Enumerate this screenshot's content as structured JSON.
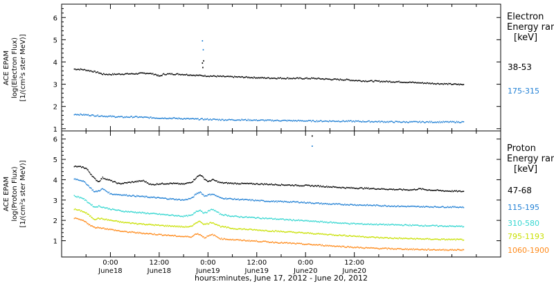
{
  "chart_data": [
    {
      "type": "scatter",
      "panel": "electron",
      "ylabel_lines": [
        "ACE EPAM",
        "log(Electron Flux)",
        "[1/(cm²s ster MeV)]"
      ],
      "ylim": [
        0.9,
        6.6
      ],
      "yticks": [
        "1",
        "2",
        "3",
        "4",
        "5",
        "6"
      ],
      "legend_title": [
        "Electron",
        "Energy range",
        "[keV]"
      ],
      "series": [
        {
          "name": "38-53",
          "color": "#000000",
          "points": [
            [
              -9,
              3.68
            ],
            [
              -7,
              3.66
            ],
            [
              -5,
              3.6
            ],
            [
              -3,
              3.52
            ],
            [
              -2,
              3.45
            ],
            [
              0,
              3.44
            ],
            [
              3,
              3.46
            ],
            [
              6,
              3.47
            ],
            [
              9,
              3.5
            ],
            [
              11,
              3.44
            ],
            [
              12,
              3.35
            ],
            [
              13,
              3.45
            ],
            [
              15,
              3.46
            ],
            [
              18,
              3.44
            ],
            [
              21,
              3.4
            ],
            [
              24,
              3.37
            ],
            [
              28,
              3.34
            ],
            [
              32,
              3.32
            ],
            [
              35,
              3.3
            ],
            [
              38,
              3.28
            ],
            [
              42,
              3.27
            ],
            [
              46,
              3.26
            ],
            [
              50,
              3.26
            ],
            [
              54,
              3.22
            ],
            [
              58,
              3.2
            ],
            [
              60,
              3.17
            ],
            [
              62,
              3.15
            ],
            [
              64,
              3.14
            ],
            [
              68,
              3.12
            ],
            [
              72,
              3.1
            ],
            [
              76,
              3.06
            ],
            [
              80,
              3.03
            ],
            [
              84,
              3.0
            ],
            [
              87,
              2.98
            ]
          ]
        },
        {
          "name": "175-315",
          "color": "#1f7fd4",
          "points": [
            [
              -9,
              1.65
            ],
            [
              -6,
              1.62
            ],
            [
              -3,
              1.58
            ],
            [
              0,
              1.55
            ],
            [
              3,
              1.52
            ],
            [
              6,
              1.53
            ],
            [
              9,
              1.5
            ],
            [
              12,
              1.48
            ],
            [
              15,
              1.47
            ],
            [
              18,
              1.45
            ],
            [
              21,
              1.43
            ],
            [
              24,
              1.42
            ],
            [
              28,
              1.4
            ],
            [
              32,
              1.4
            ],
            [
              36,
              1.38
            ],
            [
              40,
              1.37
            ],
            [
              44,
              1.36
            ],
            [
              48,
              1.35
            ],
            [
              52,
              1.34
            ],
            [
              56,
              1.34
            ],
            [
              60,
              1.33
            ],
            [
              64,
              1.32
            ],
            [
              68,
              1.31
            ],
            [
              72,
              1.3
            ],
            [
              76,
              1.3
            ],
            [
              80,
              1.3
            ],
            [
              84,
              1.3
            ],
            [
              87,
              1.3
            ]
          ]
        }
      ],
      "spikes": [
        {
          "color": "#000000",
          "points": [
            [
              22.5,
              3.95
            ],
            [
              22.6,
              3.75
            ],
            [
              22.8,
              4.05
            ]
          ]
        },
        {
          "color": "#1f7fd4",
          "points": [
            [
              22.5,
              4.95
            ],
            [
              22.7,
              4.55
            ]
          ]
        }
      ]
    },
    {
      "type": "scatter",
      "panel": "proton",
      "ylabel_lines": [
        "ACE EPAM",
        "log(Proton Flux)",
        "[1/(cm²s ster MeV)]"
      ],
      "ylim": [
        0.2,
        6.4
      ],
      "yticks": [
        "1",
        "2",
        "3",
        "4",
        "5",
        "6"
      ],
      "legend_title": [
        "Proton",
        "Energy range",
        "[keV]"
      ],
      "xlabel": "hours:minutes, June 17, 2012 - June 20, 2012",
      "xtick_hours": [
        "0:00",
        "12:00",
        "0:00",
        "12:00",
        "0:00",
        "12:00"
      ],
      "xtick_dates": [
        "June18",
        "June18",
        "June19",
        "June19",
        "June20",
        "June20"
      ],
      "xlim": [
        -12,
        96
      ],
      "series": [
        {
          "name": "47-68",
          "color": "#000000",
          "points": [
            [
              -9,
              4.65
            ],
            [
              -7,
              4.62
            ],
            [
              -6,
              4.55
            ],
            [
              -5,
              4.3
            ],
            [
              -4,
              4.05
            ],
            [
              -3,
              3.9
            ],
            [
              -2,
              4.1
            ],
            [
              0,
              3.95
            ],
            [
              2,
              3.8
            ],
            [
              4,
              3.85
            ],
            [
              6,
              3.9
            ],
            [
              8,
              3.95
            ],
            [
              10,
              3.75
            ],
            [
              12,
              3.8
            ],
            [
              15,
              3.82
            ],
            [
              18,
              3.78
            ],
            [
              20,
              3.9
            ],
            [
              21,
              4.1
            ],
            [
              22,
              4.25
            ],
            [
              23,
              4.05
            ],
            [
              24,
              3.9
            ],
            [
              25,
              4.0
            ],
            [
              27,
              3.85
            ],
            [
              30,
              3.82
            ],
            [
              34,
              3.8
            ],
            [
              38,
              3.78
            ],
            [
              42,
              3.75
            ],
            [
              46,
              3.72
            ],
            [
              50,
              3.7
            ],
            [
              54,
              3.65
            ],
            [
              58,
              3.6
            ],
            [
              62,
              3.58
            ],
            [
              66,
              3.55
            ],
            [
              70,
              3.52
            ],
            [
              74,
              3.5
            ],
            [
              76,
              3.55
            ],
            [
              78,
              3.5
            ],
            [
              82,
              3.45
            ],
            [
              87,
              3.42
            ]
          ]
        },
        {
          "name": "115-195",
          "color": "#1f7fd4",
          "points": [
            [
              -9,
              4.05
            ],
            [
              -7,
              3.95
            ],
            [
              -6,
              3.8
            ],
            [
              -5,
              3.6
            ],
            [
              -4,
              3.4
            ],
            [
              -3,
              3.45
            ],
            [
              -2,
              3.55
            ],
            [
              0,
              3.3
            ],
            [
              3,
              3.25
            ],
            [
              6,
              3.2
            ],
            [
              9,
              3.15
            ],
            [
              12,
              3.1
            ],
            [
              15,
              3.05
            ],
            [
              18,
              3.0
            ],
            [
              20,
              3.1
            ],
            [
              21,
              3.3
            ],
            [
              22,
              3.4
            ],
            [
              23,
              3.2
            ],
            [
              25,
              3.3
            ],
            [
              27,
              3.1
            ],
            [
              30,
              3.05
            ],
            [
              34,
              3.0
            ],
            [
              38,
              2.95
            ],
            [
              42,
              2.92
            ],
            [
              46,
              2.9
            ],
            [
              50,
              2.85
            ],
            [
              54,
              2.8
            ],
            [
              58,
              2.78
            ],
            [
              62,
              2.75
            ],
            [
              66,
              2.73
            ],
            [
              70,
              2.7
            ],
            [
              74,
              2.68
            ],
            [
              78,
              2.67
            ],
            [
              82,
              2.66
            ],
            [
              87,
              2.65
            ]
          ]
        },
        {
          "name": "310-580",
          "color": "#33d6d0",
          "points": [
            [
              -9,
              3.2
            ],
            [
              -7,
              3.1
            ],
            [
              -6,
              2.95
            ],
            [
              -5,
              2.8
            ],
            [
              -4,
              2.65
            ],
            [
              -3,
              2.7
            ],
            [
              0,
              2.55
            ],
            [
              3,
              2.45
            ],
            [
              6,
              2.4
            ],
            [
              9,
              2.35
            ],
            [
              12,
              2.3
            ],
            [
              15,
              2.25
            ],
            [
              18,
              2.2
            ],
            [
              20,
              2.25
            ],
            [
              21,
              2.45
            ],
            [
              22,
              2.5
            ],
            [
              23,
              2.35
            ],
            [
              25,
              2.55
            ],
            [
              27,
              2.3
            ],
            [
              30,
              2.2
            ],
            [
              34,
              2.15
            ],
            [
              38,
              2.1
            ],
            [
              42,
              2.05
            ],
            [
              46,
              2.0
            ],
            [
              50,
              1.95
            ],
            [
              54,
              1.9
            ],
            [
              58,
              1.85
            ],
            [
              62,
              1.82
            ],
            [
              66,
              1.8
            ],
            [
              70,
              1.78
            ],
            [
              74,
              1.76
            ],
            [
              78,
              1.74
            ],
            [
              82,
              1.72
            ],
            [
              87,
              1.7
            ]
          ]
        },
        {
          "name": "795-1193",
          "color": "#c8e000",
          "points": [
            [
              -9,
              2.55
            ],
            [
              -7,
              2.45
            ],
            [
              -6,
              2.35
            ],
            [
              -5,
              2.2
            ],
            [
              -4,
              2.05
            ],
            [
              -3,
              2.1
            ],
            [
              0,
              2.0
            ],
            [
              3,
              1.9
            ],
            [
              6,
              1.85
            ],
            [
              9,
              1.8
            ],
            [
              12,
              1.75
            ],
            [
              15,
              1.72
            ],
            [
              18,
              1.68
            ],
            [
              20,
              1.7
            ],
            [
              21,
              1.9
            ],
            [
              22,
              1.95
            ],
            [
              23,
              1.8
            ],
            [
              25,
              1.9
            ],
            [
              27,
              1.7
            ],
            [
              30,
              1.6
            ],
            [
              34,
              1.55
            ],
            [
              38,
              1.5
            ],
            [
              42,
              1.45
            ],
            [
              46,
              1.4
            ],
            [
              50,
              1.35
            ],
            [
              54,
              1.3
            ],
            [
              58,
              1.25
            ],
            [
              62,
              1.2
            ],
            [
              66,
              1.15
            ],
            [
              70,
              1.12
            ],
            [
              74,
              1.1
            ],
            [
              78,
              1.08
            ],
            [
              82,
              1.06
            ],
            [
              87,
              1.05
            ]
          ]
        },
        {
          "name": "1060-1900",
          "color": "#ff8a1a",
          "points": [
            [
              -9,
              2.1
            ],
            [
              -7,
              2.0
            ],
            [
              -6,
              1.9
            ],
            [
              -5,
              1.75
            ],
            [
              -4,
              1.65
            ],
            [
              -3,
              1.65
            ],
            [
              0,
              1.55
            ],
            [
              3,
              1.45
            ],
            [
              6,
              1.4
            ],
            [
              9,
              1.35
            ],
            [
              12,
              1.3
            ],
            [
              15,
              1.25
            ],
            [
              18,
              1.2
            ],
            [
              20,
              1.2
            ],
            [
              21,
              1.35
            ],
            [
              22,
              1.3
            ],
            [
              23,
              1.15
            ],
            [
              25,
              1.3
            ],
            [
              27,
              1.1
            ],
            [
              30,
              1.05
            ],
            [
              34,
              1.0
            ],
            [
              38,
              0.95
            ],
            [
              42,
              0.9
            ],
            [
              46,
              0.85
            ],
            [
              50,
              0.8
            ],
            [
              54,
              0.75
            ],
            [
              58,
              0.7
            ],
            [
              62,
              0.65
            ],
            [
              66,
              0.62
            ],
            [
              70,
              0.6
            ],
            [
              74,
              0.58
            ],
            [
              78,
              0.56
            ],
            [
              82,
              0.55
            ],
            [
              87,
              0.55
            ]
          ]
        }
      ],
      "spikes": [
        {
          "color": "#000000",
          "points": [
            [
              49.5,
              6.15
            ]
          ]
        },
        {
          "color": "#1f7fd4",
          "points": [
            [
              49.5,
              5.65
            ]
          ]
        }
      ]
    }
  ]
}
